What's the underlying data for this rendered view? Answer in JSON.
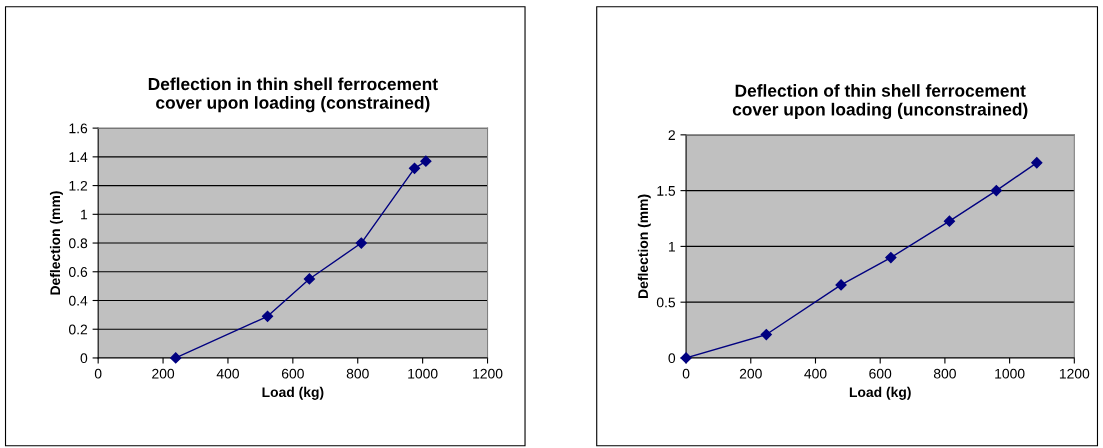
{
  "chart_data": [
    {
      "type": "line",
      "title": "Deflection in thin shell ferrocement cover upon loading (constrained)",
      "xlabel": "Load (kg)",
      "ylabel": "Deflection (mm)",
      "x": [
        239,
        522,
        651,
        811,
        975,
        1010
      ],
      "series": [
        {
          "color": "#000080",
          "values": [
            0,
            0.29,
            0.55,
            0.8,
            1.32,
            1.37
          ]
        }
      ],
      "xlim": [
        0,
        1200
      ],
      "xticks": [
        0,
        200,
        400,
        600,
        800,
        1000,
        1200
      ],
      "ylim": [
        0,
        1.6
      ],
      "yticks": [
        0,
        0.2,
        0.4,
        0.6,
        0.8,
        1,
        1.2,
        1.4,
        1.6
      ],
      "grid": "y",
      "marker": "diamond",
      "line_style": "solid",
      "legend": false
    },
    {
      "type": "line",
      "title": "Deflection of thin shell ferrocement cover upon loading (unconstrained)",
      "xlabel": "Load (kg)",
      "ylabel": "Deflection (mm)",
      "x": [
        0,
        248,
        479,
        633,
        814,
        959,
        1084
      ],
      "series": [
        {
          "color": "#000080",
          "values": [
            0,
            0.21,
            0.655,
            0.9,
            1.226,
            1.5,
            1.75
          ]
        }
      ],
      "xlim": [
        0,
        1200
      ],
      "xticks": [
        0,
        200,
        400,
        600,
        800,
        1000,
        1200
      ],
      "ylim": [
        0,
        2
      ],
      "yticks": [
        0,
        0.5,
        1,
        1.5,
        2
      ],
      "grid": "y",
      "marker": "diamond",
      "line_style": "solid",
      "legend": false
    }
  ]
}
